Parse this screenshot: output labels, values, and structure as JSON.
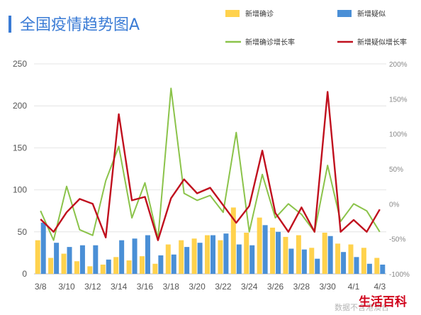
{
  "chart_data": {
    "type": "bar+line",
    "title": "全国疫情趋势图A",
    "categories": [
      "3/8",
      "3/9",
      "3/10",
      "3/11",
      "3/12",
      "3/13",
      "3/14",
      "3/15",
      "3/16",
      "3/17",
      "3/18",
      "3/19",
      "3/20",
      "3/21",
      "3/22",
      "3/23",
      "3/24",
      "3/25",
      "3/26",
      "3/27",
      "3/28",
      "3/29",
      "3/30",
      "3/31",
      "4/1",
      "4/2",
      "4/3"
    ],
    "x_tick_labels": [
      "3/8",
      "3/10",
      "3/12",
      "3/14",
      "3/16",
      "3/18",
      "3/20",
      "3/22",
      "3/24",
      "3/26",
      "3/28",
      "3/30",
      "4/1",
      "4/3"
    ],
    "bar_series": [
      {
        "name": "新增确诊",
        "color": "#ffd24d",
        "values": [
          40,
          19,
          24,
          15,
          9,
          11,
          20,
          16,
          21,
          12,
          35,
          40,
          42,
          46,
          40,
          79,
          49,
          67,
          55,
          44,
          46,
          31,
          49,
          36,
          35,
          31,
          19
        ]
      },
      {
        "name": "新增疑似",
        "color": "#4a8fd6",
        "values": [
          61,
          37,
          32,
          34,
          34,
          17,
          40,
          42,
          46,
          22,
          23,
          32,
          37,
          46,
          48,
          35,
          34,
          58,
          50,
          30,
          29,
          18,
          45,
          26,
          20,
          12,
          11
        ]
      }
    ],
    "line_series": [
      {
        "name": "新增确诊增长率",
        "color": "#8bc34a",
        "values": [
          -10,
          -52,
          25,
          -37,
          -45,
          33,
          82,
          -20,
          30,
          -50,
          165,
          15,
          5,
          12,
          -12,
          102,
          -40,
          42,
          -20,
          0,
          -15,
          -40,
          55,
          -25,
          0,
          -10,
          -40
        ]
      },
      {
        "name": "新增疑似增长率",
        "color": "#c0101e",
        "values": [
          -22,
          -40,
          -12,
          7,
          0,
          -48,
          128,
          5,
          10,
          -52,
          8,
          35,
          15,
          23,
          -2,
          -27,
          -3,
          76,
          -13,
          -40,
          -5,
          -40,
          160,
          -40,
          -23,
          -40,
          -8
        ]
      }
    ],
    "y_left": {
      "ylim": [
        0,
        250
      ],
      "ticks": [
        0,
        50,
        100,
        150,
        200,
        250
      ]
    },
    "y_right": {
      "ylim": [
        -100,
        200
      ],
      "ticks": [
        -100,
        -50,
        0,
        50,
        100,
        150,
        200
      ],
      "format": "percent"
    },
    "legend_position": "top-right",
    "grid": true
  },
  "watermark": {
    "text": "数据不含港澳台",
    "brand": "生活百科"
  }
}
